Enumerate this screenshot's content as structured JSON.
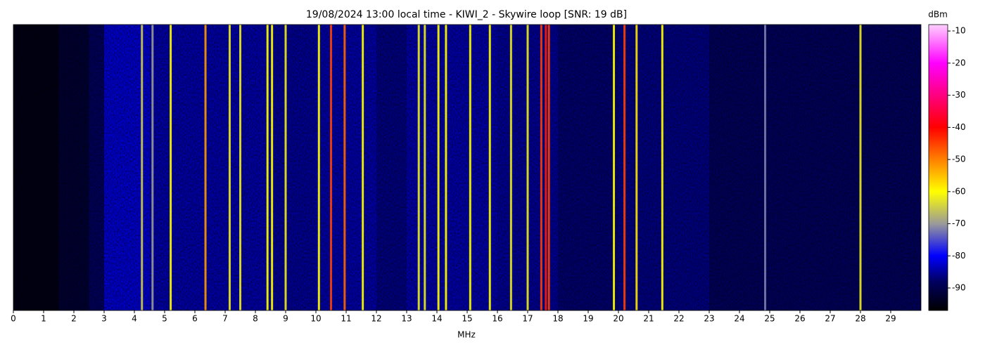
{
  "chart_data": {
    "type": "waterfall",
    "title": "19/08/2024 13:00 local time - KIWI_2 - Skywire loop [SNR: 19 dB]",
    "xlabel": "MHz",
    "colorbar_label": "dBm",
    "xlim": [
      0,
      30
    ],
    "xticks": [
      0,
      1,
      2,
      3,
      4,
      5,
      6,
      7,
      8,
      9,
      10,
      11,
      12,
      13,
      14,
      15,
      16,
      17,
      18,
      19,
      20,
      21,
      22,
      23,
      24,
      25,
      26,
      27,
      28,
      29
    ],
    "clim": [
      -97,
      -8
    ],
    "cticks": [
      -90,
      -80,
      -70,
      -60,
      -50,
      -40,
      -30,
      -20,
      -10
    ],
    "colorscale": [
      [
        -97,
        "#000000"
      ],
      [
        -88,
        "#000060"
      ],
      [
        -80,
        "#0000ff"
      ],
      [
        -70,
        "#9a9a9a"
      ],
      [
        -60,
        "#ffff00"
      ],
      [
        -50,
        "#ff8000"
      ],
      [
        -40,
        "#ff0000"
      ],
      [
        -30,
        "#ff0080"
      ],
      [
        -20,
        "#ff00ff"
      ],
      [
        -8,
        "#ffd0ff"
      ]
    ],
    "profile": {
      "bins": [
        0,
        1.5,
        2.5,
        3,
        4.5,
        8.5,
        10,
        12,
        13,
        16,
        18,
        20,
        23,
        30
      ],
      "values": [
        -95,
        -92,
        -88,
        -82,
        -84,
        -85,
        -84,
        -86,
        -84,
        -85,
        -87,
        -86,
        -88
      ]
    },
    "signals": {
      "x": [
        4.25,
        4.6,
        5.2,
        6.35,
        7.15,
        7.5,
        8.4,
        8.55,
        9.0,
        10.1,
        10.5,
        10.95,
        11.55,
        13.4,
        13.6,
        14.05,
        14.3,
        15.1,
        15.75,
        16.45,
        17.0,
        17.45,
        17.6,
        17.7,
        19.85,
        20.2,
        20.6,
        21.45,
        24.85,
        28.0
      ],
      "values": [
        -65,
        -70,
        -60,
        -52,
        -62,
        -62,
        -60,
        -60,
        -62,
        -60,
        -45,
        -48,
        -60,
        -62,
        -62,
        -60,
        -60,
        -60,
        -60,
        -62,
        -62,
        -45,
        -42,
        -45,
        -60,
        -45,
        -58,
        -60,
        -72,
        -62
      ]
    }
  }
}
